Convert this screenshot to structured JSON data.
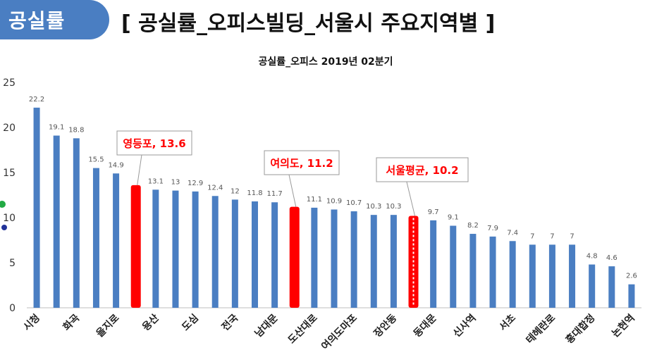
{
  "header": {
    "tab_label": "공실률",
    "title": "[ 공실률_오피스빌딩_서울시 주요지역별 ]"
  },
  "colors": {
    "bar": "#4a7ec2",
    "highlight": "#ff0000",
    "tab": "#4a7ec2"
  },
  "chart_data": {
    "type": "bar",
    "title": "공실률_오피스 2019년 02분기",
    "categories": [
      "시청",
      "",
      "화곡",
      "",
      "을지로",
      "",
      "용산",
      "",
      "도심",
      "",
      "전국",
      "",
      "남대문",
      "",
      "도산대로",
      "",
      "여의도마포",
      "",
      "장안동",
      "",
      "동대문",
      "",
      "신사역",
      "",
      "서초",
      "",
      "테헤란로",
      "",
      "홍대합정",
      "",
      "논현역"
    ],
    "tick_labels": [
      "시청",
      "화곡",
      "을지로",
      "용산",
      "도심",
      "전국",
      "남대문",
      "도산대로",
      "여의도마포",
      "장안동",
      "동대문",
      "신사역",
      "서초",
      "테헤란로",
      "홍대합정",
      "논현역"
    ],
    "values": [
      22.2,
      19.1,
      18.8,
      15.5,
      14.9,
      13.6,
      13.1,
      13,
      12.9,
      12.4,
      12,
      11.8,
      11.7,
      11.2,
      11.1,
      10.9,
      10.7,
      10.3,
      10.3,
      10.2,
      9.7,
      9.1,
      8.2,
      7.9,
      7.4,
      7,
      7,
      7,
      4.8,
      4.6,
      2.6
    ],
    "data_labels": [
      "22.2",
      "19.1",
      "18.8",
      "15.5",
      "14.9",
      "",
      "13.1",
      "13",
      "12.9",
      "12.4",
      "12",
      "11.8",
      "11.7",
      "",
      "11.1",
      "10.9",
      "10.7",
      "10.3",
      "10.3",
      "",
      "9.7",
      "9.1",
      "8.2",
      "7.9",
      "7.4",
      "7",
      "7",
      "7",
      "4.8",
      "4.6",
      "2.6"
    ],
    "highlights": [
      {
        "index": 5,
        "label": "영등포, 13.6"
      },
      {
        "index": 13,
        "label": "여의도, 11.2"
      },
      {
        "index": 19,
        "label": "서울평균, 10.2"
      }
    ],
    "ylim": [
      0,
      25
    ],
    "yticks": [
      0,
      5,
      10,
      15,
      20,
      25
    ],
    "xlabel": "",
    "ylabel": "",
    "grid": false
  }
}
